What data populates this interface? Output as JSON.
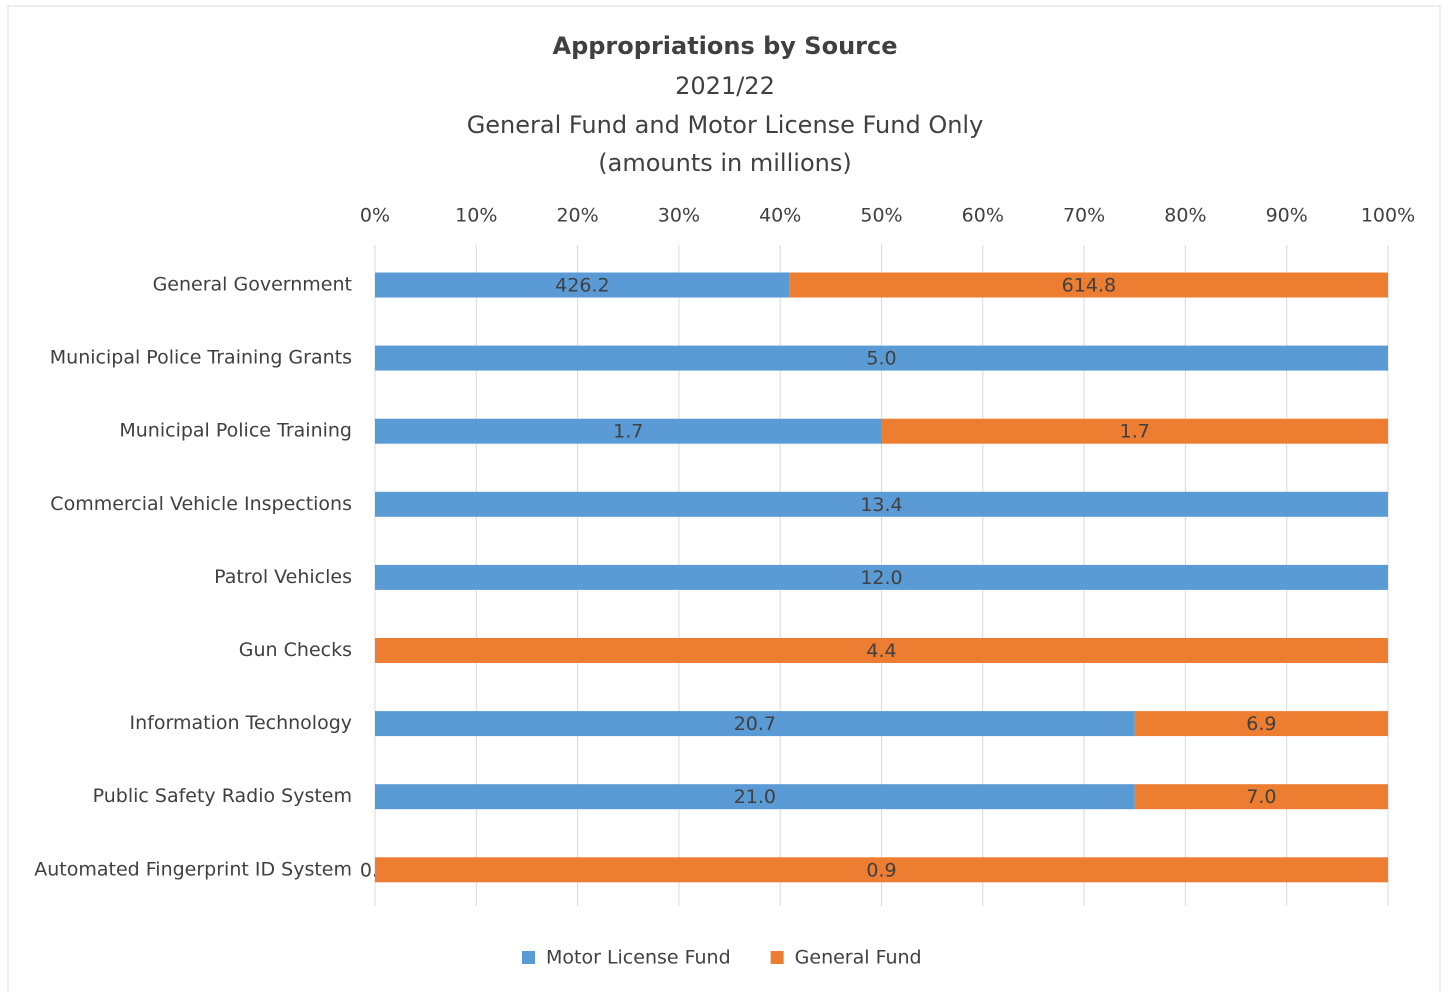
{
  "chart_data": {
    "type": "bar",
    "orientation": "horizontal",
    "stacking": "percent",
    "title": "Appropriations by Source",
    "subtitle": [
      "2021/22",
      "General Fund and Motor License Fund Only",
      "(amounts in millions)"
    ],
    "categories": [
      "General Government",
      "Municipal Police Training Grants",
      "Municipal Police Training",
      "Commercial Vehicle Inspections",
      "Patrol Vehicles",
      "Gun Checks",
      "Information Technology",
      "Public Safety Radio System",
      "Automated Fingerprint ID System"
    ],
    "series": [
      {
        "name": "Motor License Fund",
        "color": "#5b9bd5",
        "values": [
          426.2,
          5,
          1.7,
          13.4,
          12,
          null,
          20.7,
          21,
          0
        ],
        "value_labels": [
          "426.2",
          "5.0",
          "1.7",
          "13.4",
          "12.0",
          null,
          "20.7",
          "21.0",
          "0.0"
        ]
      },
      {
        "name": "General Fund",
        "color": "#ed7d31",
        "values": [
          614.8,
          null,
          1.7,
          null,
          null,
          4.4,
          6.9,
          7,
          0.9
        ],
        "value_labels": [
          "614.8",
          null,
          "1.7",
          null,
          null,
          "4.4",
          "6.9",
          "7.0",
          "0.9"
        ]
      }
    ],
    "xlim": [
      0,
      100
    ],
    "xticks": [
      {
        "value": 0,
        "label": "0%"
      },
      {
        "value": 10,
        "label": "10%"
      },
      {
        "value": 20,
        "label": "20%"
      },
      {
        "value": 30,
        "label": "30%"
      },
      {
        "value": 40,
        "label": "40%"
      },
      {
        "value": 50,
        "label": "50%"
      },
      {
        "value": 60,
        "label": "60%"
      },
      {
        "value": 70,
        "label": "70%"
      },
      {
        "value": 80,
        "label": "80%"
      },
      {
        "value": 90,
        "label": "90%"
      },
      {
        "value": 100,
        "label": "100%"
      }
    ],
    "grid": true,
    "legend": "bottom"
  }
}
